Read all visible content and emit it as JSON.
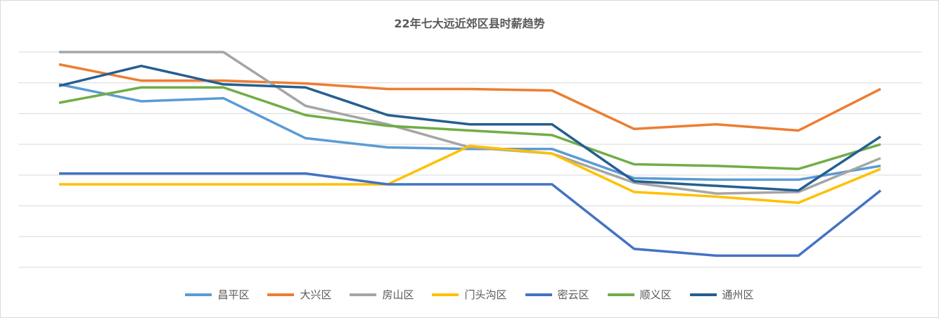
{
  "chart_data": {
    "type": "line",
    "title": "22年七大远近郊区县时薪趋势",
    "xlabel": "",
    "ylabel": "",
    "ylim": [
      0,
      7
    ],
    "grid": true,
    "legend_position": "bottom",
    "x": [
      1,
      2,
      3,
      4,
      5,
      6,
      7,
      8,
      9,
      10,
      11
    ],
    "series": [
      {
        "name": "昌平区",
        "color": "#5B9BD5",
        "values": [
          5.95,
          5.4,
          5.5,
          4.2,
          3.9,
          3.85,
          3.85,
          2.9,
          2.85,
          2.85,
          3.3
        ]
      },
      {
        "name": "大兴区",
        "color": "#ED7D31",
        "values": [
          6.6,
          6.07,
          6.07,
          5.98,
          5.8,
          5.8,
          5.75,
          4.5,
          4.65,
          4.45,
          5.8
        ]
      },
      {
        "name": "房山区",
        "color": "#A5A5A5",
        "values": [
          7.0,
          7.0,
          7.0,
          5.25,
          4.65,
          3.9,
          3.7,
          2.75,
          2.4,
          2.45,
          3.55
        ]
      },
      {
        "name": "门头沟区",
        "color": "#FFC000",
        "values": [
          2.7,
          2.7,
          2.7,
          2.7,
          2.7,
          3.95,
          3.7,
          2.45,
          2.3,
          2.1,
          3.2
        ]
      },
      {
        "name": "密云区",
        "color": "#4472C4",
        "values": [
          3.05,
          3.05,
          3.05,
          3.05,
          2.7,
          2.7,
          2.7,
          0.6,
          0.38,
          0.38,
          2.5
        ]
      },
      {
        "name": "顺义区",
        "color": "#70AD47",
        "values": [
          5.35,
          5.85,
          5.85,
          4.95,
          4.6,
          4.45,
          4.3,
          3.35,
          3.3,
          3.2,
          4.0
        ]
      },
      {
        "name": "通州区",
        "color": "#255E91",
        "values": [
          5.9,
          6.55,
          5.95,
          5.85,
          4.95,
          4.65,
          4.65,
          2.8,
          2.65,
          2.5,
          4.25
        ]
      }
    ]
  }
}
